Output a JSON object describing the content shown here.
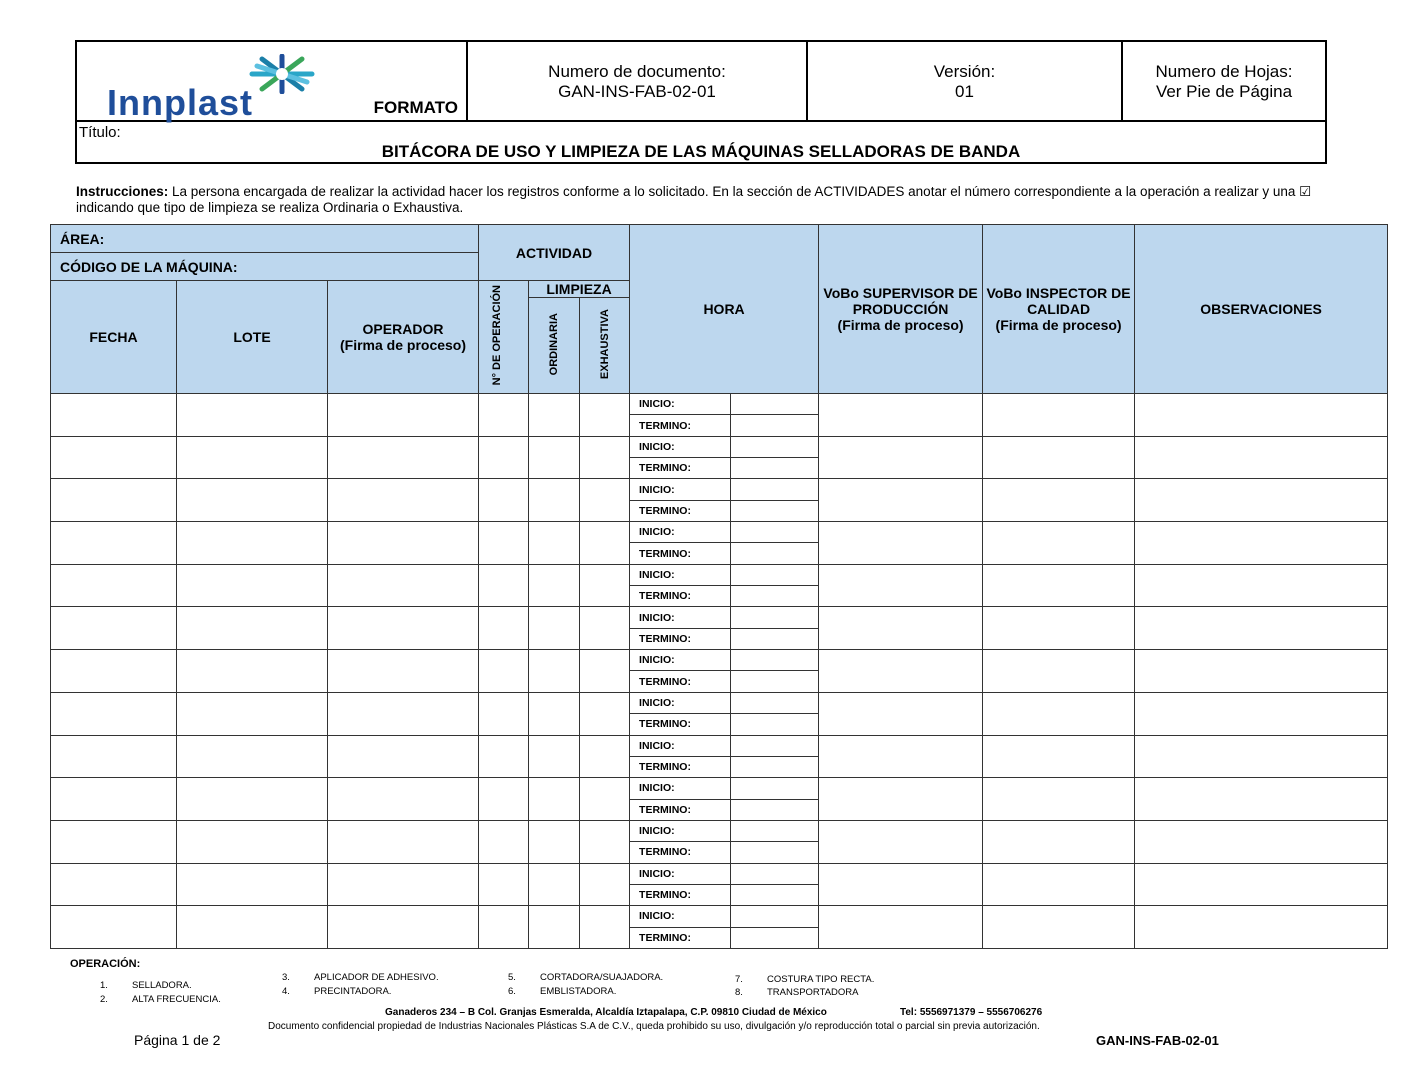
{
  "header": {
    "logo_text": "Innplast",
    "formato": "FORMATO",
    "doc_label": "Numero de documento:",
    "doc_value": "GAN-INS-FAB-02-01",
    "version_label": "Versión:",
    "version_value": "01",
    "sheets_label": "Numero de Hojas:",
    "sheets_value": "Ver Pie de Página",
    "title_label": "Título:",
    "title": "BITÁCORA DE USO Y LIMPIEZA DE LAS MÁQUINAS SELLADORAS DE BANDA"
  },
  "instructions": {
    "label": "Instrucciones:",
    "text": " La persona encargada de realizar la actividad hacer los registros conforme a lo solicitado. En la sección de ACTIVIDADES anotar el número correspondiente a la operación a realizar y una ☑ indicando que tipo de limpieza se realiza Ordinaria o Exhaustiva."
  },
  "table": {
    "area": "ÁREA:",
    "codigo": "CÓDIGO DE LA MÁQUINA:",
    "actividad": "ACTIVIDAD",
    "limpieza": "LIMPIEZA",
    "fecha": "FECHA",
    "lote": "LOTE",
    "operador": "OPERADOR",
    "operador_sub": "(Firma de proceso)",
    "num_op": "N° DE OPERACIÓN",
    "ordinaria": "ORDINARIA",
    "exhaustiva": "EXHAUSTIVA",
    "hora": "HORA",
    "vobo_sup": "VoBo SUPERVISOR DE PRODUCCIÓN",
    "vobo_sup_sub": "(Firma de proceso)",
    "vobo_insp": "VoBo INSPECTOR DE CALIDAD",
    "vobo_insp_sub": "(Firma de proceso)",
    "obs": "OBSERVACIONES",
    "inicio": "INICIO:",
    "termino": "TERMINO:",
    "row_count": 13
  },
  "operations": {
    "title": "OPERACIÓN:",
    "items": [
      "1.|SELLADORA.",
      "2.|ALTA FRECUENCIA.",
      "3.|APLICADOR DE ADHESIVO.",
      "4.|PRECINTADORA.",
      "5.|CORTADORA/SUAJADORA.",
      "6.|EMBLISTADORA.",
      "7.|COSTURA TIPO RECTA.",
      "8.|TRANSPORTADORA"
    ]
  },
  "footer": {
    "address": "Ganaderos 234 – B Col. Granjas Esmeralda, Alcaldía Iztapalapa, C.P. 09810 Ciudad de México",
    "phone": "Tel: 5556971379 – 5556706276",
    "confidential": "Documento confidencial propiedad de Industrias Nacionales Plásticas S.A de C.V., queda prohibido su uso, divulgación y/o reproducción total o parcial sin previa autorización.",
    "page": "Página  1 de 2",
    "code": "GAN-INS-FAB-02-01"
  },
  "colors": {
    "header_fill": "#bdd7ee",
    "logo_blue": "#1f4e9a"
  }
}
